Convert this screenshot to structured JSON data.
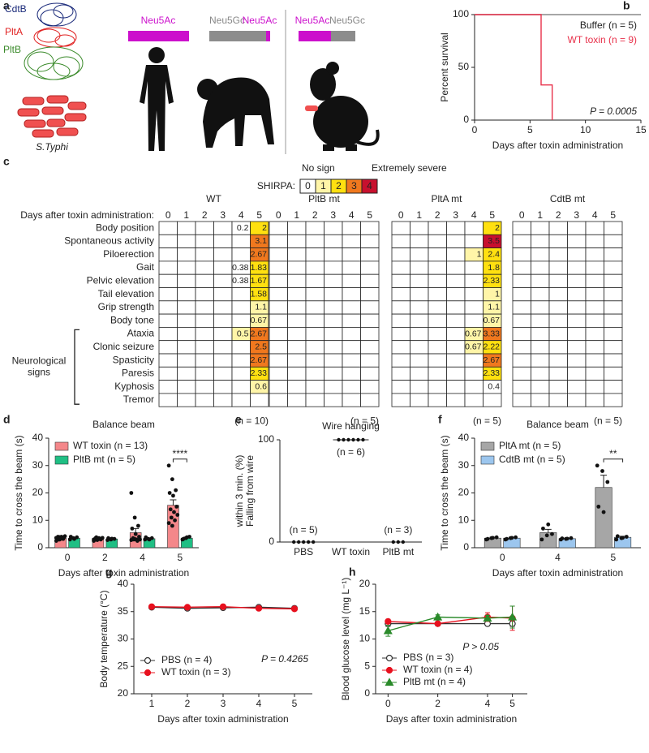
{
  "figure_a": {
    "label": "a",
    "proteins": [
      "CdtB",
      "PltA",
      "PltB"
    ],
    "protein_colors": [
      "#1a2a7a",
      "#e02020",
      "#3a8a2a"
    ],
    "bacterium": "S.Typhi",
    "human": [
      "Neu5Ac"
    ],
    "chimpanzee": [
      "Neu5Gc",
      "Neu5Ac"
    ],
    "mouse": [
      "Neu5Ac",
      "Neu5Gc"
    ]
  },
  "chart_data": [
    {
      "label": "b",
      "type": "line",
      "xlabel": "Days after toxin administration",
      "ylabel": [
        "Percent survival"
      ],
      "x": [
        0,
        6,
        6,
        7,
        7,
        15
      ],
      "xlim": [
        0,
        15
      ],
      "xticks": [
        0,
        5,
        10,
        15
      ],
      "ylim": [
        0,
        100
      ],
      "yticks": [
        0,
        50,
        100
      ],
      "legend": "upper right",
      "annotation": "P = 0.0005",
      "series": [
        {
          "name": "Buffer (n = 5)",
          "color": "#888888",
          "values": [
            100,
            100,
            100,
            100,
            100,
            100
          ]
        },
        {
          "name": "WT toxin (n = 9)",
          "color": "#e8304a",
          "values": [
            100,
            100,
            33.3,
            33.3,
            0,
            null
          ]
        }
      ]
    },
    {
      "label": "c",
      "type": "heatmap",
      "legend_label": "SHIRPA:",
      "scale_labels": [
        "No sign",
        "Extremely severe"
      ],
      "levels": [
        0,
        1,
        2,
        3,
        4
      ],
      "level_colors": [
        "#ffffff",
        "#fff5a8",
        "#ffe010",
        "#f0781e",
        "#c8102e"
      ],
      "x_label": "Days after toxin administration:",
      "categories": [
        "0",
        "1",
        "2",
        "3",
        "4",
        "5"
      ],
      "rows": [
        "Body position",
        "Spontaneous activity",
        "Piloerection",
        "Gait",
        "Pelvic elevation",
        "Tail elevation",
        "Grip strength",
        "Body tone",
        "Ataxia",
        "Clonic seizure",
        "Spasticity",
        "Paresis",
        "Kyphosis",
        "Tremor"
      ],
      "row_group_label": [
        "Neurological",
        "signs"
      ],
      "groups": [
        {
          "name": "WT",
          "n_label": "(n = 10)",
          "values": [
            [
              null,
              null,
              null,
              null,
              0.2,
              2
            ],
            [
              null,
              null,
              null,
              null,
              null,
              3.1
            ],
            [
              null,
              null,
              null,
              null,
              null,
              2.67
            ],
            [
              null,
              null,
              null,
              null,
              0.38,
              1.83
            ],
            [
              null,
              null,
              null,
              null,
              0.38,
              1.67
            ],
            [
              null,
              null,
              null,
              null,
              null,
              1.58
            ],
            [
              null,
              null,
              null,
              null,
              null,
              1.1
            ],
            [
              null,
              null,
              null,
              null,
              null,
              0.67
            ],
            [
              null,
              null,
              null,
              null,
              0.5,
              2.67
            ],
            [
              null,
              null,
              null,
              null,
              null,
              2.5
            ],
            [
              null,
              null,
              null,
              null,
              null,
              2.67
            ],
            [
              null,
              null,
              null,
              null,
              null,
              2.33
            ],
            [
              null,
              null,
              null,
              null,
              null,
              0.6
            ],
            [
              null,
              null,
              null,
              null,
              null,
              null
            ]
          ]
        },
        {
          "name": "PltB mt",
          "n_label": "(n = 5)",
          "values": [
            [
              null,
              null,
              null,
              null,
              null,
              null
            ],
            [
              null,
              null,
              null,
              null,
              null,
              null
            ],
            [
              null,
              null,
              null,
              null,
              null,
              null
            ],
            [
              null,
              null,
              null,
              null,
              null,
              null
            ],
            [
              null,
              null,
              null,
              null,
              null,
              null
            ],
            [
              null,
              null,
              null,
              null,
              null,
              null
            ],
            [
              null,
              null,
              null,
              null,
              null,
              null
            ],
            [
              null,
              null,
              null,
              null,
              null,
              null
            ],
            [
              null,
              null,
              null,
              null,
              null,
              null
            ],
            [
              null,
              null,
              null,
              null,
              null,
              null
            ],
            [
              null,
              null,
              null,
              null,
              null,
              null
            ],
            [
              null,
              null,
              null,
              null,
              null,
              null
            ],
            [
              null,
              null,
              null,
              null,
              null,
              null
            ],
            [
              null,
              null,
              null,
              null,
              null,
              null
            ]
          ]
        },
        {
          "name": "PltA mt",
          "n_label": "(n = 5)",
          "values": [
            [
              null,
              null,
              null,
              null,
              null,
              2
            ],
            [
              null,
              null,
              null,
              null,
              null,
              3.5
            ],
            [
              null,
              null,
              null,
              null,
              1,
              2.4
            ],
            [
              null,
              null,
              null,
              null,
              null,
              1.8
            ],
            [
              null,
              null,
              null,
              null,
              null,
              2.33
            ],
            [
              null,
              null,
              null,
              null,
              null,
              1
            ],
            [
              null,
              null,
              null,
              null,
              null,
              1.1
            ],
            [
              null,
              null,
              null,
              null,
              null,
              0.67
            ],
            [
              null,
              null,
              null,
              null,
              0.67,
              3.33
            ],
            [
              null,
              null,
              null,
              null,
              0.67,
              2.22
            ],
            [
              null,
              null,
              null,
              null,
              null,
              2.67
            ],
            [
              null,
              null,
              null,
              null,
              null,
              2.33
            ],
            [
              null,
              null,
              null,
              null,
              null,
              0.4
            ],
            [
              null,
              null,
              null,
              null,
              null,
              null
            ]
          ]
        },
        {
          "name": "CdtB mt",
          "n_label": "(n = 5)",
          "values": [
            [
              null,
              null,
              null,
              null,
              null,
              null
            ],
            [
              null,
              null,
              null,
              null,
              null,
              null
            ],
            [
              null,
              null,
              null,
              null,
              null,
              null
            ],
            [
              null,
              null,
              null,
              null,
              null,
              null
            ],
            [
              null,
              null,
              null,
              null,
              null,
              null
            ],
            [
              null,
              null,
              null,
              null,
              null,
              null
            ],
            [
              null,
              null,
              null,
              null,
              null,
              null
            ],
            [
              null,
              null,
              null,
              null,
              null,
              null
            ],
            [
              null,
              null,
              null,
              null,
              null,
              null
            ],
            [
              null,
              null,
              null,
              null,
              null,
              null
            ],
            [
              null,
              null,
              null,
              null,
              null,
              null
            ],
            [
              null,
              null,
              null,
              null,
              null,
              null
            ],
            [
              null,
              null,
              null,
              null,
              null,
              null
            ],
            [
              null,
              null,
              null,
              null,
              null,
              null
            ]
          ]
        }
      ]
    },
    {
      "label": "d",
      "type": "bar",
      "title": "Balance beam",
      "xlabel": "Days after toxin administration",
      "ylabel": [
        "Time to cross the beam (s)"
      ],
      "categories": [
        "0",
        "2",
        "4",
        "5"
      ],
      "ylim": [
        0,
        40
      ],
      "yticks": [
        0,
        10,
        20,
        30,
        40
      ],
      "legend": "upper left",
      "annotation": "****",
      "series": [
        {
          "name": "WT toxin (n = 13)",
          "color": "#f4878a",
          "values": [
            3.5,
            3.3,
            5.5,
            15.5
          ],
          "errors": [
            0.4,
            0.3,
            1.5,
            2
          ],
          "points": [
            [
              2.5,
              3,
              3.2,
              3.5,
              3.5,
              3.8,
              4,
              4,
              4.2,
              3,
              3.3,
              3.6,
              3.9
            ],
            [
              2.5,
              2.8,
              3,
              3,
              3.2,
              3.3,
              3.5,
              3.5,
              3.6,
              3.8,
              3.2,
              3,
              3.4
            ],
            [
              20,
              11,
              8,
              7,
              5,
              4,
              3.5,
              3,
              3,
              3,
              2.5,
              2.8,
              3.2
            ],
            [
              30,
              25,
              21,
              20,
              19,
              15,
              14,
              13,
              12,
              11,
              10,
              9,
              8
            ]
          ]
        },
        {
          "name": "PltB mt (n = 5)",
          "color": "#1fbf84",
          "values": [
            3.5,
            3.2,
            3.3,
            3.5
          ],
          "errors": [
            0.3,
            0.3,
            0.3,
            0.4
          ],
          "points": [
            [
              3,
              3.5,
              3.8,
              4,
              3.2
            ],
            [
              2.8,
              3,
              3.2,
              3.5,
              3.3
            ],
            [
              3,
              3.2,
              3.5,
              3.8,
              3
            ],
            [
              3,
              3.5,
              4,
              3.2,
              3.8
            ]
          ]
        }
      ]
    },
    {
      "label": "e",
      "type": "dot",
      "title": "Wire hanging",
      "ylabel": [
        "Falling from wire",
        "within 3 min. (%)"
      ],
      "categories": [
        "PBS",
        "WT toxin",
        "PltB mt"
      ],
      "ylim": [
        0,
        100
      ],
      "yticks": [
        0,
        100
      ],
      "values": [
        0,
        100,
        0
      ],
      "n_labels": [
        "(n = 5)",
        "(n = 6)",
        "(n = 3)"
      ],
      "points": [
        [
          0,
          0,
          0,
          0,
          0
        ],
        [
          100,
          100,
          100,
          100,
          100,
          100
        ],
        [
          0,
          0,
          0
        ]
      ]
    },
    {
      "label": "f",
      "type": "bar",
      "title": "Balance beam",
      "xlabel": "Days after toxin administration",
      "ylabel": [
        "Time to cross the beam (s)"
      ],
      "categories": [
        "0",
        "4",
        "5"
      ],
      "ylim": [
        0,
        40
      ],
      "yticks": [
        0,
        10,
        20,
        30,
        40
      ],
      "legend": "upper left",
      "annotation": "**",
      "series": [
        {
          "name": "PltA mt (n = 5)",
          "color": "#a6a6a6",
          "values": [
            3.5,
            5.5,
            22
          ],
          "errors": [
            0.3,
            1.2,
            4.5
          ],
          "points": [
            [
              3,
              3.5,
              3.8,
              3.2,
              3.6
            ],
            [
              3,
              4.5,
              5,
              7,
              8.5
            ],
            [
              30,
              28,
              24,
              15,
              13
            ]
          ]
        },
        {
          "name": "CdtB mt (n = 5)",
          "color": "#9cc6ee",
          "values": [
            3.5,
            3.3,
            3.8
          ],
          "errors": [
            0.3,
            0.2,
            0.4
          ],
          "points": [
            [
              3,
              3.5,
              3.8,
              3.2,
              3.6
            ],
            [
              3,
              3.2,
              3.5,
              3.4,
              3.3
            ],
            [
              3,
              3.5,
              4,
              4.2,
              3.6
            ]
          ]
        }
      ]
    },
    {
      "label": "g",
      "type": "line",
      "xlabel": "Days after toxin administration",
      "ylabel": [
        "Body temperature (°C)"
      ],
      "x": [
        1,
        2,
        3,
        4,
        5
      ],
      "xlim": [
        0.5,
        5.5
      ],
      "xticks": [
        1,
        2,
        3,
        4,
        5
      ],
      "ylim": [
        20,
        40
      ],
      "yticks": [
        20,
        25,
        30,
        35,
        40
      ],
      "legend": "lower left",
      "annotation": "P = 0.4265",
      "series": [
        {
          "name": "PBS (n = 4)",
          "color": "#333333",
          "marker": "open-circle",
          "values": [
            35.8,
            35.6,
            35.7,
            35.8,
            35.6
          ]
        },
        {
          "name": "WT toxin (n = 3)",
          "color": "#e8101e",
          "marker": "circle",
          "values": [
            35.9,
            35.8,
            35.9,
            35.6,
            35.5
          ]
        }
      ]
    },
    {
      "label": "h",
      "type": "line",
      "xlabel": "Days after toxin administration",
      "ylabel": [
        "Blood glucose level (mg L⁻¹)"
      ],
      "x": [
        0,
        2,
        4,
        5
      ],
      "xlim": [
        -0.5,
        5.6
      ],
      "xticks": [
        0,
        2,
        4,
        5
      ],
      "ylim": [
        0,
        20
      ],
      "yticks": [
        0,
        5,
        10,
        15,
        20
      ],
      "legend": "lower left",
      "annotation": "P > 0.05",
      "series": [
        {
          "name": "PBS (n = 3)",
          "color": "#333333",
          "marker": "open-circle",
          "values": [
            12.8,
            12.8,
            12.8,
            12.8
          ],
          "errors": [
            0.5,
            0.3,
            0.4,
            0.5
          ]
        },
        {
          "name": "WT toxin (n = 4)",
          "color": "#e8101e",
          "marker": "circle",
          "values": [
            13.2,
            12.8,
            14,
            13.8
          ],
          "errors": [
            0.4,
            0.3,
            0.8,
            2.2
          ]
        },
        {
          "name": "PltB mt (n = 4)",
          "color": "#2a8a2a",
          "marker": "triangle",
          "values": [
            11.5,
            14,
            13.8,
            14
          ],
          "errors": [
            1,
            0.4,
            0.5,
            2
          ]
        }
      ]
    }
  ]
}
